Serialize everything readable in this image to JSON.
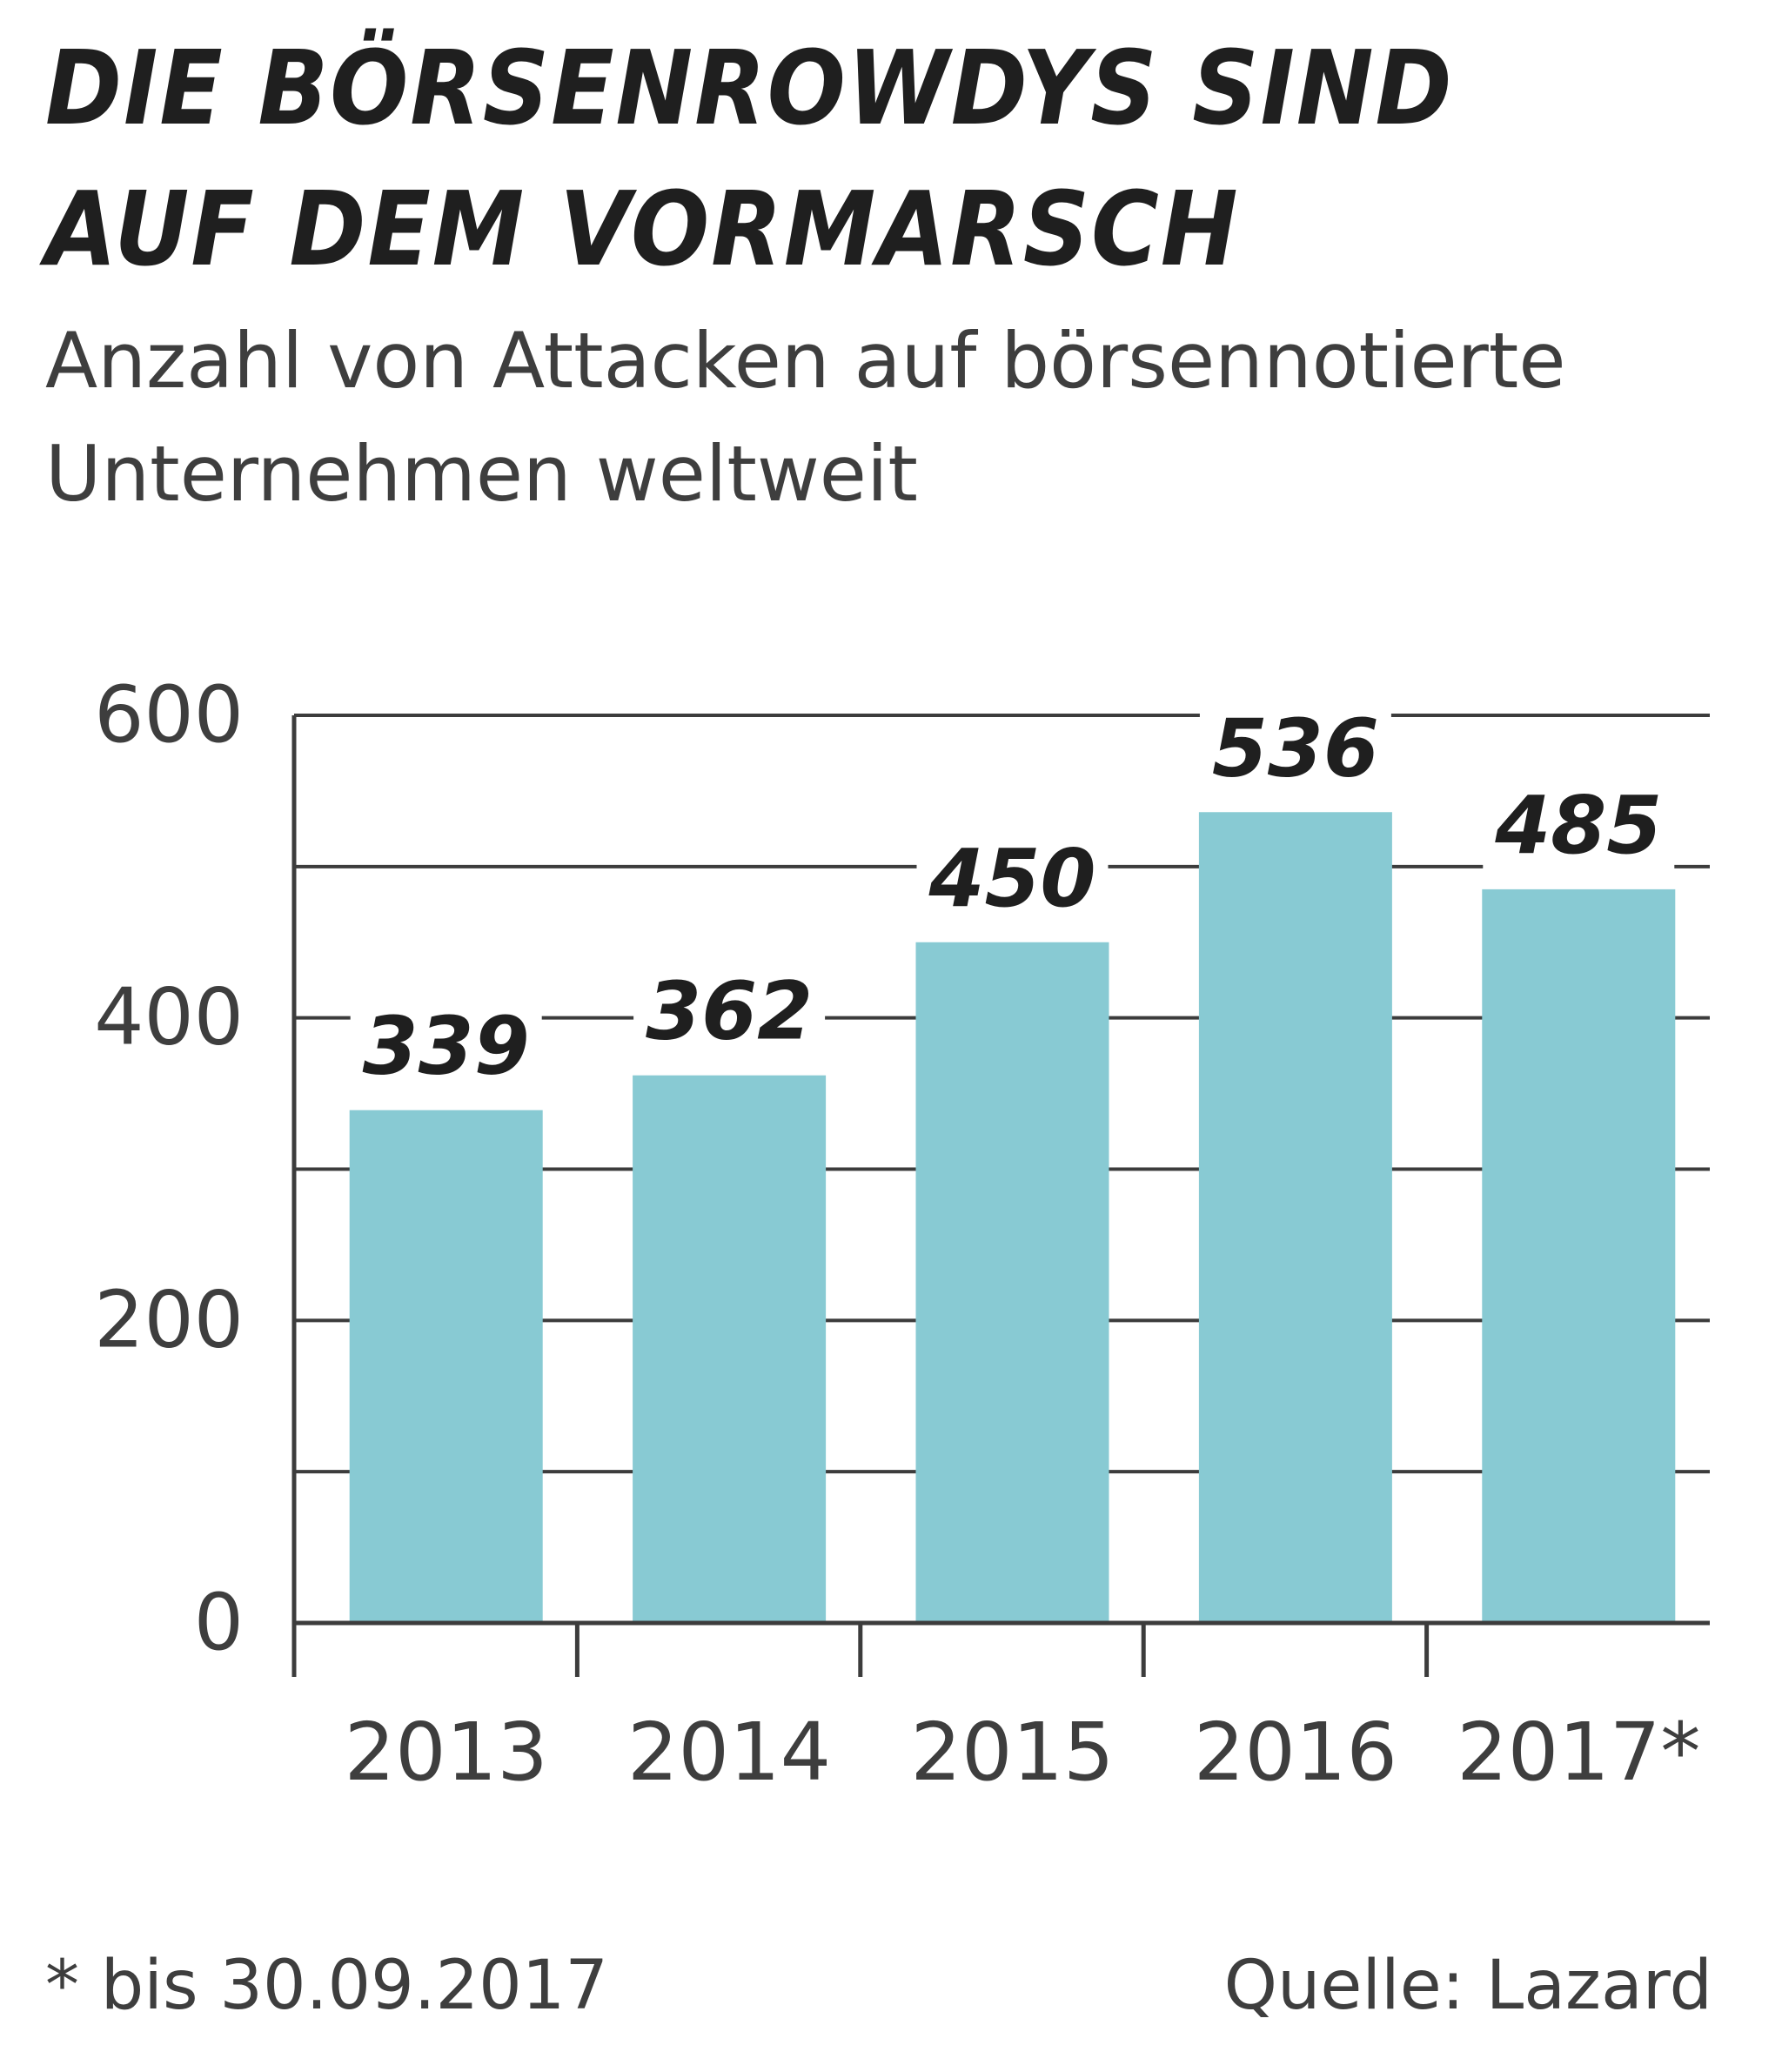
{
  "chart_data": {
    "type": "bar",
    "title_lines": [
      "DIE BÖRSENROWDYS SIND",
      "AUF DEM VORMARSCH"
    ],
    "subtitle_lines": [
      "Anzahl von Attacken auf börsennotierte",
      "Unternehmen weltweit"
    ],
    "categories": [
      "2013",
      "2014",
      "2015",
      "2016",
      "2017*"
    ],
    "values": [
      339,
      362,
      450,
      536,
      485
    ],
    "data_labels": [
      "339",
      "362",
      "450",
      "536",
      "485"
    ],
    "ylim": [
      0,
      600
    ],
    "yticks": [
      0,
      200,
      400,
      600
    ],
    "ytick_labels": [
      "0",
      "200",
      "400",
      "600"
    ],
    "gridlines": [
      100,
      200,
      300,
      400,
      500,
      600
    ],
    "grid": true,
    "xlabel": "",
    "ylabel": "",
    "footnote": "* bis 30.09.2017",
    "source": "Quelle: Lazard",
    "bar_color": "#88cad3",
    "grid_color": "#3c3c3c",
    "text_color": "#1f1f1f"
  }
}
